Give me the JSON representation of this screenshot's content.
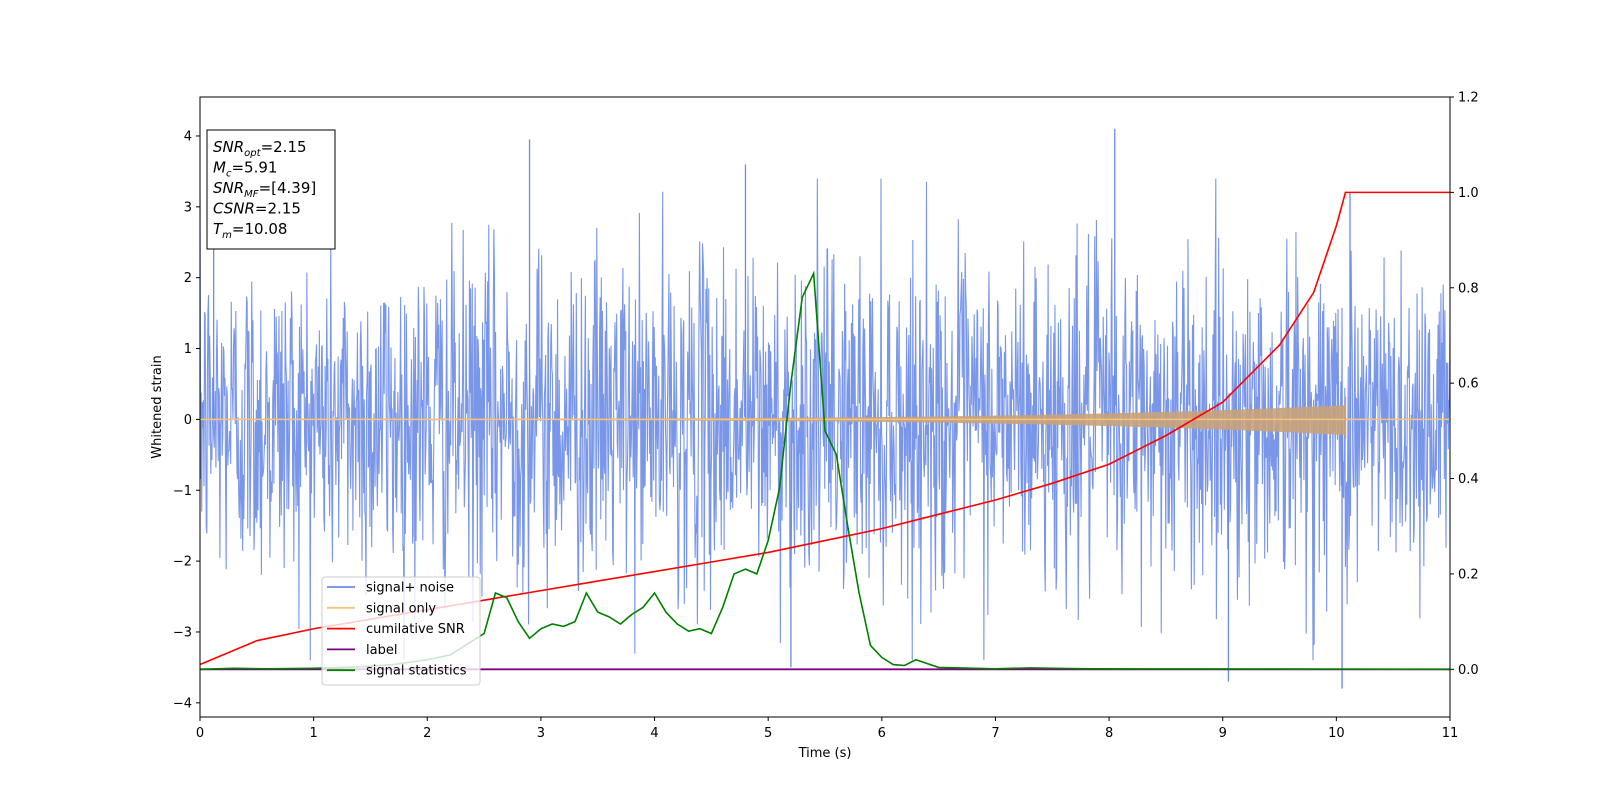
{
  "chart_data": {
    "type": "line",
    "title": "",
    "xlabel": "Time (s)",
    "ylabel": "Whitened strain",
    "xlim": [
      0,
      11
    ],
    "ylim": [
      -4.2,
      4.55
    ],
    "y2lim": [
      -0.1,
      1.2
    ],
    "xticks": [
      0,
      1,
      2,
      3,
      4,
      5,
      6,
      7,
      8,
      9,
      10,
      11
    ],
    "yticks": [
      -4,
      -3,
      -2,
      -1,
      0,
      1,
      2,
      3,
      4
    ],
    "y2ticks": [
      0.0,
      0.2,
      0.4,
      0.6,
      0.8,
      1.0,
      1.2
    ],
    "colors": {
      "signal_noise": "#6a8be6",
      "signal_only": "#f5c37a",
      "signal_only_fill": "#c8a27a",
      "cumulative_snr": "#ff0000",
      "label": "#800080",
      "signal_statistics": "#007f00"
    },
    "annotation": [
      {
        "name": "SNR",
        "sub": "opt",
        "value": "=2.15"
      },
      {
        "name": "M",
        "sub": "c",
        "value": "=5.91"
      },
      {
        "name": "SNR",
        "sub": "MF",
        "value": "=[4.39]"
      },
      {
        "name": "CSNR",
        "sub": "",
        "value": "=2.15"
      },
      {
        "name": "T",
        "sub": "m",
        "value": "=10.08"
      }
    ],
    "legend": {
      "location": "lower-left",
      "entries": [
        "signal+ noise",
        "signal only",
        "cumilative SNR",
        "label",
        "signal statistics"
      ]
    },
    "noise": {
      "samples": 2200,
      "amplitude_sd": 1.15,
      "spikes": [
        [
          0.12,
          3.3
        ],
        [
          2.9,
          3.95
        ],
        [
          4.8,
          3.6
        ],
        [
          5.2,
          -3.5
        ],
        [
          8.05,
          4.1
        ],
        [
          9.05,
          -3.7
        ],
        [
          10.05,
          -3.8
        ],
        [
          10.12,
          3.2
        ]
      ]
    },
    "signal_only": {
      "t_start": 0,
      "t_merge": 10.08,
      "amp_start": 0.01,
      "amp_end": 0.2
    },
    "cumulative_snr": {
      "axis": "right",
      "x": [
        0,
        0.5,
        1,
        1.5,
        2,
        2.5,
        3,
        3.5,
        4,
        4.5,
        5,
        5.5,
        6,
        6.5,
        7,
        7.5,
        8,
        8.5,
        9,
        9.5,
        9.8,
        10,
        10.08,
        11
      ],
      "y": [
        0.01,
        0.06,
        0.085,
        0.105,
        0.125,
        0.145,
        0.165,
        0.185,
        0.205,
        0.225,
        0.245,
        0.27,
        0.295,
        0.325,
        0.355,
        0.39,
        0.43,
        0.49,
        0.56,
        0.68,
        0.79,
        0.93,
        1.0,
        1.0
      ]
    },
    "label_series": {
      "axis": "right",
      "x": [
        0,
        11
      ],
      "y": [
        0,
        0
      ]
    },
    "signal_statistics": {
      "axis": "right",
      "x": [
        0,
        0.3,
        0.6,
        1.0,
        1.4,
        1.7,
        2.0,
        2.2,
        2.4,
        2.5,
        2.6,
        2.7,
        2.8,
        2.9,
        3.0,
        3.1,
        3.2,
        3.3,
        3.4,
        3.5,
        3.6,
        3.7,
        3.8,
        3.9,
        4.0,
        4.1,
        4.2,
        4.3,
        4.4,
        4.5,
        4.6,
        4.7,
        4.8,
        4.9,
        5.0,
        5.1,
        5.2,
        5.3,
        5.4,
        5.5,
        5.6,
        5.7,
        5.8,
        5.9,
        6.0,
        6.1,
        6.2,
        6.3,
        6.5,
        7.0,
        7.3,
        7.8,
        11
      ],
      "y": [
        0,
        0.002,
        0.001,
        0.002,
        0.005,
        0.01,
        0.02,
        0.03,
        0.06,
        0.075,
        0.16,
        0.15,
        0.1,
        0.065,
        0.085,
        0.095,
        0.09,
        0.1,
        0.16,
        0.12,
        0.11,
        0.095,
        0.115,
        0.13,
        0.16,
        0.12,
        0.095,
        0.08,
        0.085,
        0.075,
        0.13,
        0.2,
        0.21,
        0.2,
        0.27,
        0.38,
        0.6,
        0.78,
        0.83,
        0.5,
        0.45,
        0.3,
        0.16,
        0.05,
        0.025,
        0.01,
        0.008,
        0.02,
        0.004,
        0.001,
        0.003,
        0.001,
        0
      ]
    }
  }
}
